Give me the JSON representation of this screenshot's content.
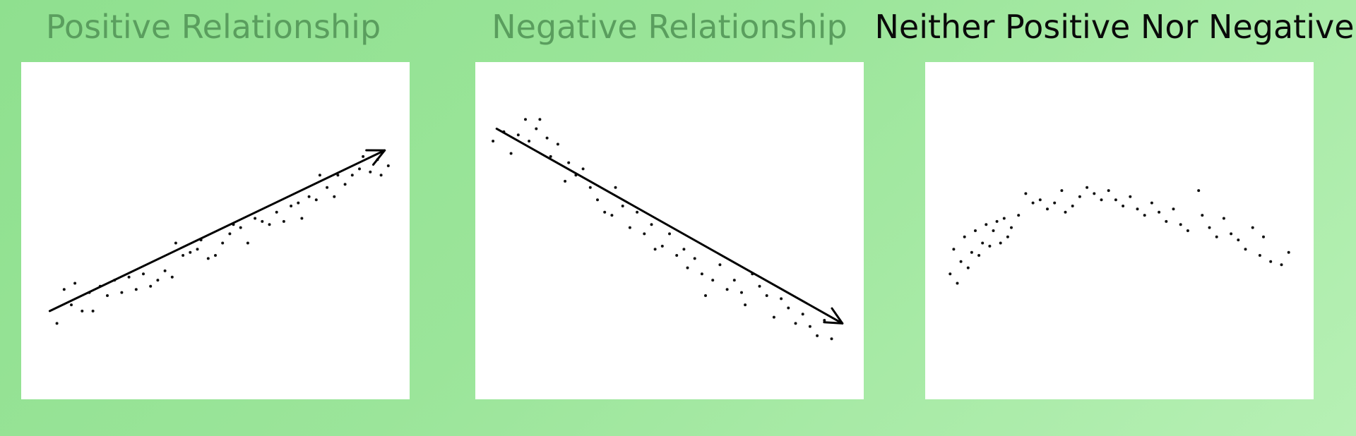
{
  "chart_data": [
    {
      "type": "scatter",
      "title": "Positive Relationship",
      "title_state": "faded",
      "xlim": [
        0,
        10
      ],
      "ylim": [
        0,
        10
      ],
      "trend_arrow": {
        "x0": 0.4,
        "y0": 2.4,
        "x1": 9.7,
        "y1": 7.6
      },
      "points": [
        [
          0.6,
          2.0
        ],
        [
          0.8,
          3.1
        ],
        [
          1.0,
          2.6
        ],
        [
          1.1,
          3.3
        ],
        [
          1.3,
          2.4
        ],
        [
          1.5,
          3.0
        ],
        [
          1.6,
          2.4
        ],
        [
          1.8,
          3.2
        ],
        [
          2.0,
          2.9
        ],
        [
          2.2,
          3.4
        ],
        [
          2.4,
          3.0
        ],
        [
          2.6,
          3.5
        ],
        [
          2.8,
          3.1
        ],
        [
          3.0,
          3.6
        ],
        [
          3.2,
          3.2
        ],
        [
          3.4,
          3.4
        ],
        [
          3.6,
          3.7
        ],
        [
          3.8,
          3.5
        ],
        [
          3.9,
          4.6
        ],
        [
          4.1,
          4.2
        ],
        [
          4.3,
          4.3
        ],
        [
          4.5,
          4.4
        ],
        [
          4.6,
          4.7
        ],
        [
          4.8,
          4.1
        ],
        [
          5.0,
          4.2
        ],
        [
          5.2,
          4.6
        ],
        [
          5.4,
          4.9
        ],
        [
          5.5,
          5.2
        ],
        [
          5.7,
          5.1
        ],
        [
          5.9,
          4.6
        ],
        [
          6.1,
          5.4
        ],
        [
          6.3,
          5.3
        ],
        [
          6.5,
          5.2
        ],
        [
          6.7,
          5.6
        ],
        [
          6.9,
          5.3
        ],
        [
          7.1,
          5.8
        ],
        [
          7.3,
          5.9
        ],
        [
          7.4,
          5.4
        ],
        [
          7.6,
          6.1
        ],
        [
          7.8,
          6.0
        ],
        [
          7.9,
          6.8
        ],
        [
          8.1,
          6.4
        ],
        [
          8.3,
          6.1
        ],
        [
          8.4,
          6.8
        ],
        [
          8.6,
          6.5
        ],
        [
          8.8,
          6.8
        ],
        [
          9.0,
          7.0
        ],
        [
          9.1,
          7.4
        ],
        [
          9.3,
          6.9
        ],
        [
          9.5,
          7.3
        ],
        [
          9.6,
          6.8
        ],
        [
          9.8,
          7.1
        ]
      ]
    },
    {
      "type": "scatter",
      "title": "Negative Relationship",
      "title_state": "faded",
      "xlim": [
        0,
        10
      ],
      "ylim": [
        0,
        10
      ],
      "trend_arrow": {
        "x0": 0.2,
        "y0": 8.3,
        "x1": 9.8,
        "y1": 2.0
      },
      "points": [
        [
          0.1,
          7.9
        ],
        [
          0.4,
          8.2
        ],
        [
          0.6,
          7.5
        ],
        [
          0.8,
          8.1
        ],
        [
          1.0,
          8.6
        ],
        [
          1.1,
          7.9
        ],
        [
          1.3,
          8.3
        ],
        [
          1.4,
          8.6
        ],
        [
          1.6,
          8.0
        ],
        [
          1.7,
          7.4
        ],
        [
          1.9,
          7.8
        ],
        [
          2.1,
          6.6
        ],
        [
          2.2,
          7.2
        ],
        [
          2.4,
          6.8
        ],
        [
          2.6,
          7.0
        ],
        [
          2.8,
          6.4
        ],
        [
          3.0,
          6.0
        ],
        [
          3.2,
          5.6
        ],
        [
          3.4,
          5.5
        ],
        [
          3.5,
          6.4
        ],
        [
          3.7,
          5.8
        ],
        [
          3.9,
          5.1
        ],
        [
          4.1,
          5.6
        ],
        [
          4.3,
          4.9
        ],
        [
          4.5,
          5.2
        ],
        [
          4.6,
          4.4
        ],
        [
          4.8,
          4.5
        ],
        [
          5.0,
          4.9
        ],
        [
          5.2,
          4.2
        ],
        [
          5.4,
          4.4
        ],
        [
          5.5,
          3.8
        ],
        [
          5.7,
          4.1
        ],
        [
          5.9,
          3.6
        ],
        [
          6.0,
          2.9
        ],
        [
          6.2,
          3.4
        ],
        [
          6.4,
          3.9
        ],
        [
          6.6,
          3.1
        ],
        [
          6.8,
          3.4
        ],
        [
          7.0,
          3.0
        ],
        [
          7.1,
          2.6
        ],
        [
          7.3,
          3.6
        ],
        [
          7.5,
          3.2
        ],
        [
          7.7,
          2.9
        ],
        [
          7.9,
          2.2
        ],
        [
          8.1,
          2.8
        ],
        [
          8.3,
          2.5
        ],
        [
          8.5,
          2.0
        ],
        [
          8.7,
          2.3
        ],
        [
          8.9,
          1.9
        ],
        [
          9.1,
          1.6
        ],
        [
          9.3,
          2.1
        ],
        [
          9.5,
          1.5
        ]
      ]
    },
    {
      "type": "scatter",
      "title": "Neither Positive Nor Negative",
      "title_state": "active",
      "xlim": [
        0,
        10
      ],
      "ylim": [
        0,
        10
      ],
      "points": [
        [
          0.3,
          3.6
        ],
        [
          0.4,
          4.4
        ],
        [
          0.5,
          3.3
        ],
        [
          0.6,
          4.0
        ],
        [
          0.7,
          4.8
        ],
        [
          0.8,
          3.8
        ],
        [
          0.9,
          4.3
        ],
        [
          1.0,
          5.0
        ],
        [
          1.1,
          4.2
        ],
        [
          1.2,
          4.6
        ],
        [
          1.3,
          5.2
        ],
        [
          1.4,
          4.5
        ],
        [
          1.5,
          5.0
        ],
        [
          1.6,
          5.3
        ],
        [
          1.7,
          4.6
        ],
        [
          1.8,
          5.4
        ],
        [
          1.9,
          4.8
        ],
        [
          2.0,
          5.1
        ],
        [
          2.2,
          5.5
        ],
        [
          2.4,
          6.2
        ],
        [
          2.6,
          5.9
        ],
        [
          2.8,
          6.0
        ],
        [
          3.0,
          5.7
        ],
        [
          3.2,
          5.9
        ],
        [
          3.4,
          6.3
        ],
        [
          3.5,
          5.6
        ],
        [
          3.7,
          5.8
        ],
        [
          3.9,
          6.1
        ],
        [
          4.1,
          6.4
        ],
        [
          4.3,
          6.2
        ],
        [
          4.5,
          6.0
        ],
        [
          4.7,
          6.3
        ],
        [
          4.9,
          6.0
        ],
        [
          5.1,
          5.8
        ],
        [
          5.3,
          6.1
        ],
        [
          5.5,
          5.7
        ],
        [
          5.7,
          5.5
        ],
        [
          5.9,
          5.9
        ],
        [
          6.1,
          5.6
        ],
        [
          6.3,
          5.3
        ],
        [
          6.5,
          5.7
        ],
        [
          6.7,
          5.2
        ],
        [
          6.9,
          5.0
        ],
        [
          7.2,
          6.3
        ],
        [
          7.3,
          5.5
        ],
        [
          7.5,
          5.1
        ],
        [
          7.7,
          4.8
        ],
        [
          7.9,
          5.4
        ],
        [
          8.1,
          4.9
        ],
        [
          8.3,
          4.7
        ],
        [
          8.5,
          4.4
        ],
        [
          8.7,
          5.1
        ],
        [
          8.9,
          4.2
        ],
        [
          9.0,
          4.8
        ],
        [
          9.2,
          4.0
        ],
        [
          9.5,
          3.9
        ],
        [
          9.7,
          4.3
        ]
      ]
    }
  ]
}
